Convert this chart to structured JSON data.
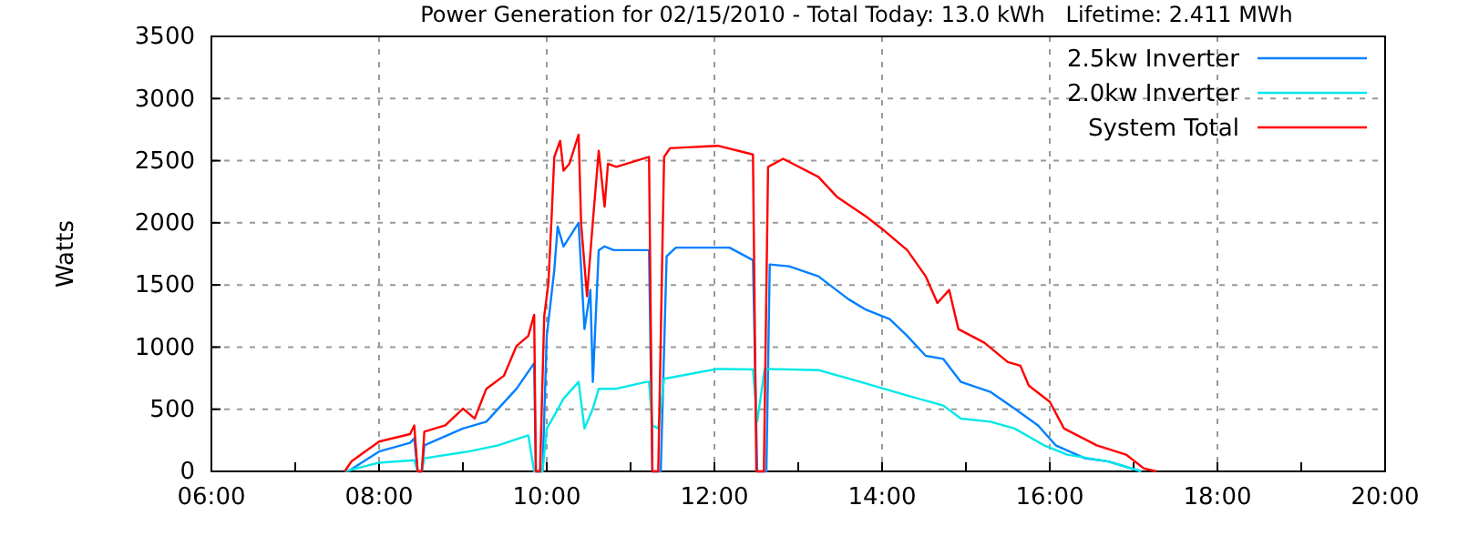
{
  "chart_data": {
    "type": "line",
    "title": "Power Generation for 02/15/2010 - Total Today: 13.0 kWh   Lifetime: 2.411 MWh",
    "ylabel": "Watts",
    "xlim": [
      6,
      20
    ],
    "ylim": [
      0,
      3500
    ],
    "xticks": [
      {
        "value": 6,
        "label": "06:00"
      },
      {
        "value": 7,
        "label": null
      },
      {
        "value": 8,
        "label": "08:00"
      },
      {
        "value": 9,
        "label": null
      },
      {
        "value": 10,
        "label": "10:00"
      },
      {
        "value": 11,
        "label": null
      },
      {
        "value": 12,
        "label": "12:00"
      },
      {
        "value": 13,
        "label": null
      },
      {
        "value": 14,
        "label": "14:00"
      },
      {
        "value": 15,
        "label": null
      },
      {
        "value": 16,
        "label": "16:00"
      },
      {
        "value": 17,
        "label": null
      },
      {
        "value": 18,
        "label": "18:00"
      },
      {
        "value": 19,
        "label": null
      },
      {
        "value": 20,
        "label": "20:00"
      }
    ],
    "yticks": [
      0,
      500,
      1000,
      1500,
      2000,
      2500,
      3000,
      3500
    ],
    "grid": true,
    "legend": "top right",
    "marker": "none",
    "line_style": "solid",
    "series": [
      {
        "name": "2.5kw Inverter",
        "color": "#0080ff",
        "x": [
          7.63,
          8.0,
          8.37,
          8.42,
          8.46,
          8.51,
          8.54,
          9.0,
          9.28,
          9.64,
          9.85,
          9.87,
          9.95,
          10.0,
          10.09,
          10.13,
          10.2,
          10.38,
          10.45,
          10.52,
          10.55,
          10.62,
          10.69,
          10.8,
          11.19,
          11.22,
          11.26,
          11.36,
          11.43,
          11.54,
          12.18,
          12.46,
          12.51,
          12.62,
          12.66,
          12.89,
          13.24,
          13.6,
          13.81,
          14.09,
          14.3,
          14.52,
          14.73,
          14.94,
          15.29,
          15.58,
          15.86,
          16.07,
          16.42,
          16.7,
          17.09
        ],
        "values": [
          0,
          160,
          230,
          265,
          0,
          0,
          210,
          345,
          400,
          665,
          870,
          0,
          0,
          1090,
          1620,
          1970,
          1810,
          2000,
          1145,
          1460,
          720,
          1780,
          1810,
          1780,
          1780,
          1780,
          0,
          0,
          1730,
          1800,
          1800,
          1700,
          0,
          0,
          1665,
          1650,
          1570,
          1385,
          1300,
          1225,
          1090,
          930,
          905,
          720,
          640,
          505,
          370,
          210,
          105,
          80,
          0
        ]
      },
      {
        "name": "2.0kw Inverter",
        "color": "#00e8e8",
        "x": [
          7.59,
          8.0,
          8.42,
          8.46,
          8.51,
          8.54,
          9.07,
          9.42,
          9.78,
          9.85,
          9.95,
          10.0,
          10.09,
          10.2,
          10.38,
          10.45,
          10.55,
          10.62,
          10.83,
          11.19,
          11.22,
          11.26,
          11.33,
          11.4,
          12.04,
          12.46,
          12.51,
          12.6,
          13.24,
          13.74,
          14.3,
          14.73,
          14.94,
          15.29,
          15.58,
          15.93,
          16.21,
          16.7,
          17.09
        ],
        "values": [
          0,
          70,
          90,
          0,
          0,
          105,
          160,
          210,
          290,
          0,
          0,
          345,
          450,
          585,
          720,
          345,
          505,
          665,
          665,
          720,
          720,
          370,
          345,
          745,
          825,
          820,
          400,
          825,
          815,
          720,
          610,
          530,
          425,
          400,
          345,
          210,
          135,
          80,
          0
        ]
      },
      {
        "name": "System Total",
        "color": "#ff0000",
        "x": [
          7.59,
          7.67,
          8.0,
          8.37,
          8.42,
          8.46,
          8.51,
          8.54,
          8.79,
          9.0,
          9.14,
          9.28,
          9.49,
          9.64,
          9.78,
          9.85,
          9.87,
          9.92,
          9.97,
          10.02,
          10.06,
          10.09,
          10.16,
          10.2,
          10.27,
          10.38,
          10.41,
          10.48,
          10.55,
          10.62,
          10.69,
          10.73,
          10.83,
          11.22,
          11.26,
          11.33,
          11.4,
          11.47,
          12.04,
          12.46,
          12.5,
          12.59,
          12.64,
          12.82,
          13.24,
          13.46,
          13.81,
          14.02,
          14.3,
          14.52,
          14.66,
          14.8,
          14.91,
          15.22,
          15.5,
          15.65,
          15.75,
          16.0,
          16.17,
          16.56,
          16.91,
          17.12,
          17.27
        ],
        "values": [
          0,
          80,
          240,
          300,
          370,
          0,
          0,
          320,
          370,
          505,
          425,
          665,
          770,
          1010,
          1090,
          1260,
          0,
          0,
          1250,
          1515,
          2075,
          2530,
          2660,
          2420,
          2475,
          2710,
          1995,
          1410,
          2010,
          2580,
          2130,
          2475,
          2450,
          2530,
          0,
          0,
          2530,
          2600,
          2620,
          2550,
          0,
          0,
          2450,
          2515,
          2370,
          2210,
          2050,
          1940,
          1780,
          1570,
          1355,
          1460,
          1145,
          1035,
          880,
          850,
          690,
          560,
          345,
          210,
          135,
          25,
          0
        ]
      }
    ]
  }
}
